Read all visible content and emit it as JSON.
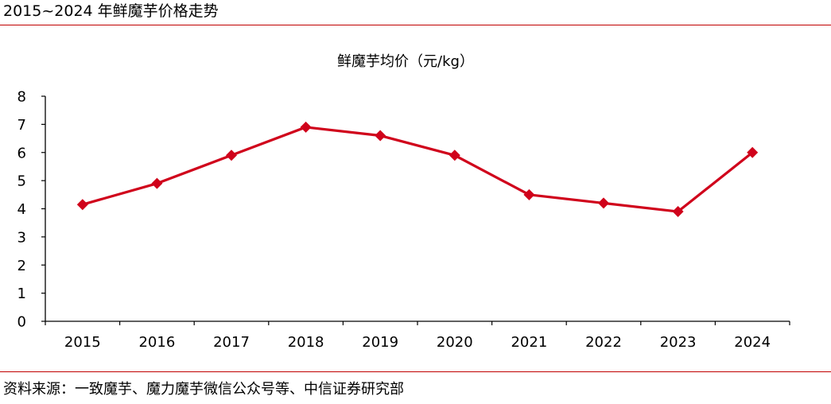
{
  "header": {
    "title": "2015~2024 年鲜魔芋价格走势"
  },
  "footer": {
    "source": "资料来源：一致魔芋、魔力魔芋微信公众号等、中信证券研究部"
  },
  "chart_data": {
    "type": "line",
    "title": "鲜魔芋均价（元/kg）",
    "xlabel": "",
    "ylabel": "",
    "categories": [
      "2015",
      "2016",
      "2017",
      "2018",
      "2019",
      "2020",
      "2021",
      "2022",
      "2023",
      "2024"
    ],
    "series": [
      {
        "values": [
          4.15,
          4.9,
          5.9,
          6.9,
          6.6,
          5.9,
          4.5,
          4.2,
          3.9,
          6.0
        ]
      }
    ],
    "ylim": [
      0,
      8
    ],
    "yticks": [
      "0",
      "1",
      "2",
      "3",
      "4",
      "5",
      "6",
      "7",
      "8"
    ],
    "grid": false,
    "legend": "none",
    "marker": "diamond",
    "colors": {
      "line": "#d0021b",
      "axis": "#000000",
      "rule": "#c00000"
    }
  }
}
